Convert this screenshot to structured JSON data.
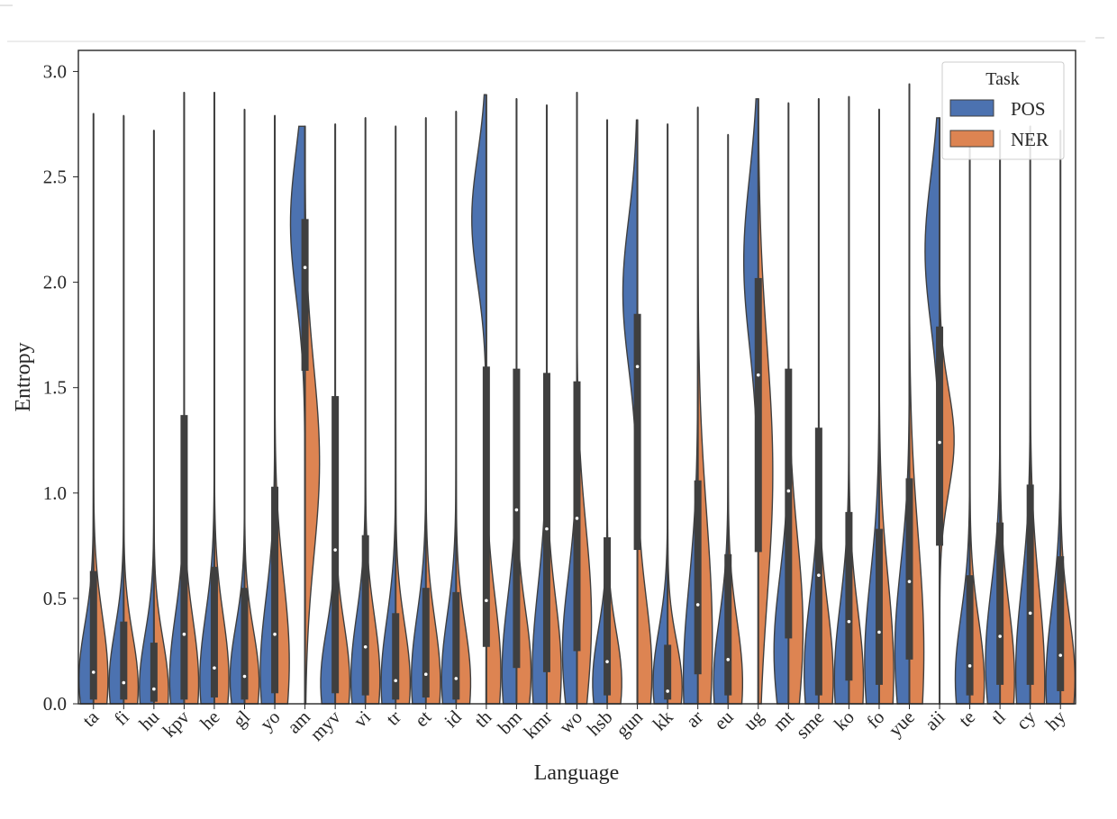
{
  "chart_data": {
    "type": "violin",
    "xlabel": "Language",
    "ylabel": "Entropy",
    "ylim": [
      0.0,
      3.1
    ],
    "yticks": [
      "0.0",
      "0.5",
      "1.0",
      "1.5",
      "2.0",
      "2.5",
      "3.0"
    ],
    "grid": false,
    "split": true,
    "legend": {
      "title": "Task",
      "position": "top-right",
      "entries": [
        {
          "label": "POS",
          "color": "#4c72b0"
        },
        {
          "label": "NER",
          "color": "#dd8452"
        }
      ]
    },
    "categories": [
      "ta",
      "fi",
      "hu",
      "kpv",
      "he",
      "gl",
      "yo",
      "am",
      "myv",
      "vi",
      "tr",
      "et",
      "id",
      "th",
      "bm",
      "kmr",
      "wo",
      "hsb",
      "gun",
      "kk",
      "ar",
      "eu",
      "ug",
      "mt",
      "sme",
      "ko",
      "fo",
      "yue",
      "aii",
      "te",
      "tl",
      "cy",
      "hy"
    ],
    "series": [
      {
        "name": "POS",
        "color": "#4c72b0",
        "max": [
          2.8,
          2.79,
          2.72,
          2.9,
          2.9,
          2.82,
          2.79,
          2.74,
          2.75,
          2.78,
          2.74,
          2.78,
          2.81,
          2.89,
          2.87,
          2.84,
          2.9,
          2.77,
          2.77,
          2.75,
          2.83,
          2.7,
          2.87,
          2.85,
          2.87,
          2.88,
          2.82,
          2.94,
          2.78,
          2.7,
          2.72,
          2.74,
          2.72
        ],
        "mode": [
          0.12,
          0.1,
          0.08,
          0.12,
          0.12,
          0.12,
          0.15,
          2.28,
          0.1,
          0.12,
          0.1,
          0.12,
          0.12,
          2.3,
          0.15,
          0.15,
          0.25,
          0.1,
          1.95,
          0.1,
          0.12,
          0.1,
          2.1,
          0.25,
          0.15,
          0.12,
          0.2,
          0.25,
          2.15,
          0.12,
          0.2,
          0.15,
          0.1
        ],
        "width": [
          0.25,
          0.25,
          0.25,
          0.3,
          0.3,
          0.25,
          0.35,
          0.35,
          0.25,
          0.3,
          0.3,
          0.3,
          0.3,
          0.3,
          0.35,
          0.4,
          0.35,
          0.25,
          0.35,
          0.25,
          0.45,
          0.3,
          0.4,
          0.35,
          0.35,
          0.35,
          0.4,
          0.4,
          0.35,
          0.3,
          0.35,
          0.4,
          0.35
        ]
      },
      {
        "name": "NER",
        "color": "#dd8452",
        "max": [
          2.78,
          2.79,
          2.72,
          2.9,
          2.9,
          2.8,
          2.79,
          2.74,
          2.75,
          2.78,
          2.74,
          2.78,
          2.81,
          2.86,
          2.87,
          2.84,
          2.9,
          2.77,
          2.77,
          2.75,
          2.83,
          2.7,
          2.87,
          2.85,
          2.87,
          2.88,
          2.82,
          2.94,
          2.78,
          2.7,
          2.72,
          2.74,
          2.72
        ],
        "mode": [
          0.12,
          0.08,
          0.06,
          0.1,
          0.12,
          0.1,
          0.2,
          1.15,
          0.1,
          0.12,
          0.1,
          0.1,
          0.1,
          0.15,
          0.15,
          0.15,
          0.4,
          0.1,
          0.15,
          0.08,
          0.3,
          0.1,
          1.1,
          0.35,
          0.12,
          0.1,
          0.15,
          0.25,
          1.25,
          0.1,
          0.12,
          0.1,
          0.12
        ],
        "width": [
          0.3,
          0.25,
          0.25,
          0.3,
          0.3,
          0.25,
          0.4,
          0.45,
          0.28,
          0.3,
          0.28,
          0.3,
          0.28,
          0.35,
          0.3,
          0.35,
          0.45,
          0.25,
          0.35,
          0.22,
          0.6,
          0.3,
          0.6,
          0.45,
          0.35,
          0.35,
          0.45,
          0.55,
          0.25,
          0.3,
          0.35,
          0.45,
          0.3
        ]
      }
    ],
    "median": [
      0.15,
      0.1,
      0.07,
      0.33,
      0.17,
      0.13,
      0.33,
      2.07,
      0.73,
      0.27,
      0.11,
      0.14,
      0.12,
      0.49,
      0.92,
      0.83,
      0.88,
      0.2,
      1.6,
      0.06,
      0.47,
      0.21,
      1.56,
      1.01,
      0.61,
      0.39,
      0.34,
      0.58,
      1.24,
      0.18,
      0.32,
      0.43,
      0.23
    ],
    "q1": [
      0.02,
      0.02,
      0.01,
      0.02,
      0.03,
      0.02,
      0.05,
      1.58,
      0.05,
      0.04,
      0.02,
      0.03,
      0.02,
      0.27,
      0.17,
      0.15,
      0.25,
      0.04,
      0.73,
      0.02,
      0.14,
      0.04,
      0.72,
      0.31,
      0.04,
      0.11,
      0.09,
      0.21,
      0.75,
      0.04,
      0.09,
      0.09,
      0.06
    ],
    "q3": [
      0.63,
      0.39,
      0.29,
      1.37,
      0.65,
      0.55,
      1.03,
      2.3,
      1.46,
      0.8,
      0.43,
      0.55,
      0.53,
      1.6,
      1.59,
      1.57,
      1.53,
      0.79,
      1.85,
      0.28,
      1.06,
      0.71,
      2.02,
      1.59,
      1.31,
      0.91,
      0.83,
      1.07,
      1.79,
      0.61,
      0.86,
      1.04,
      0.7
    ]
  }
}
